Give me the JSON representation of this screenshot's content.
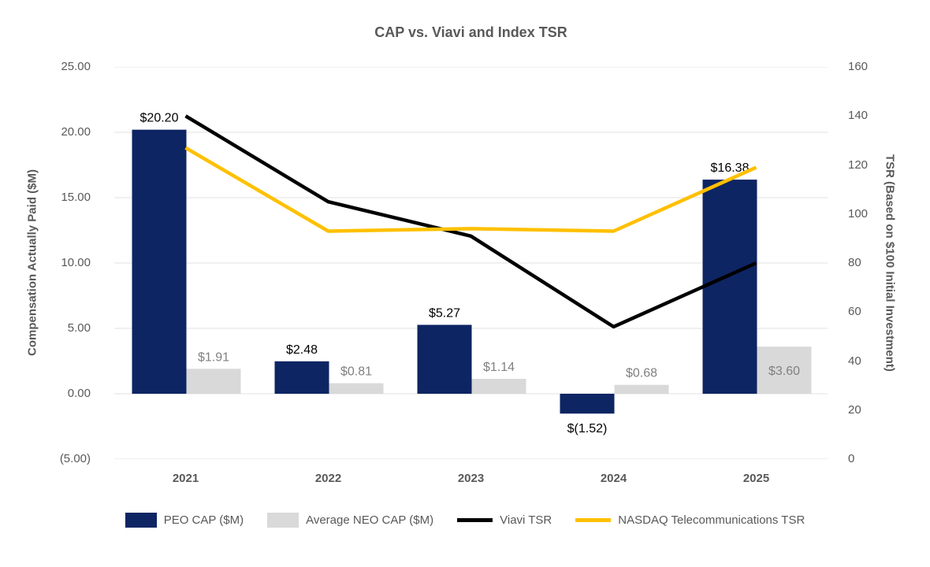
{
  "title": "CAP vs. Viavi and Index TSR",
  "chart_data": {
    "type": "combo-bar-line",
    "categories": [
      "2021",
      "2022",
      "2023",
      "2024",
      "2025"
    ],
    "bar_series": [
      {
        "name": "PEO CAP ($M)",
        "color": "#0d2563",
        "label_color": "#000000",
        "values": [
          20.2,
          2.48,
          5.27,
          -1.52,
          16.38
        ],
        "labels": [
          "$20.20",
          "$2.48",
          "$5.27",
          "$(1.52)",
          "$16.38"
        ],
        "label_positions": [
          "above",
          "above",
          "above",
          "below",
          "above"
        ]
      },
      {
        "name": "Average NEO CAP ($M)",
        "color": "#d9d9d9",
        "label_color": "#808080",
        "values": [
          1.91,
          0.81,
          1.14,
          0.68,
          3.6
        ],
        "labels": [
          "$1.91",
          "$0.81",
          "$1.14",
          "$0.68",
          "$3.60"
        ],
        "label_positions": [
          "above",
          "above",
          "above",
          "above",
          "inside"
        ]
      }
    ],
    "line_series": [
      {
        "name": "Viavi TSR",
        "color": "#000000",
        "values": [
          140,
          105,
          91,
          54,
          80
        ]
      },
      {
        "name": "NASDAQ Telecommunications TSR",
        "color": "#ffc000",
        "values": [
          127,
          93,
          94,
          93,
          119
        ]
      }
    ],
    "left_axis": {
      "title": "Compensation Actually Paid ($M)",
      "ticks": [
        "25.00",
        "20.00",
        "15.00",
        "10.00",
        "5.00",
        "0.00",
        "(5.00)"
      ],
      "tick_values": [
        25,
        20,
        15,
        10,
        5,
        0,
        -5
      ],
      "min": -5,
      "max": 25
    },
    "right_axis": {
      "title": "TSR (Based on $100 Initial Investment)",
      "ticks": [
        "160",
        "140",
        "120",
        "100",
        "80",
        "60",
        "40",
        "20",
        "0"
      ],
      "tick_values": [
        160,
        140,
        120,
        100,
        80,
        60,
        40,
        20,
        0
      ],
      "min": 0,
      "max": 160
    },
    "legend_position": "bottom",
    "grid": "horizontal"
  }
}
